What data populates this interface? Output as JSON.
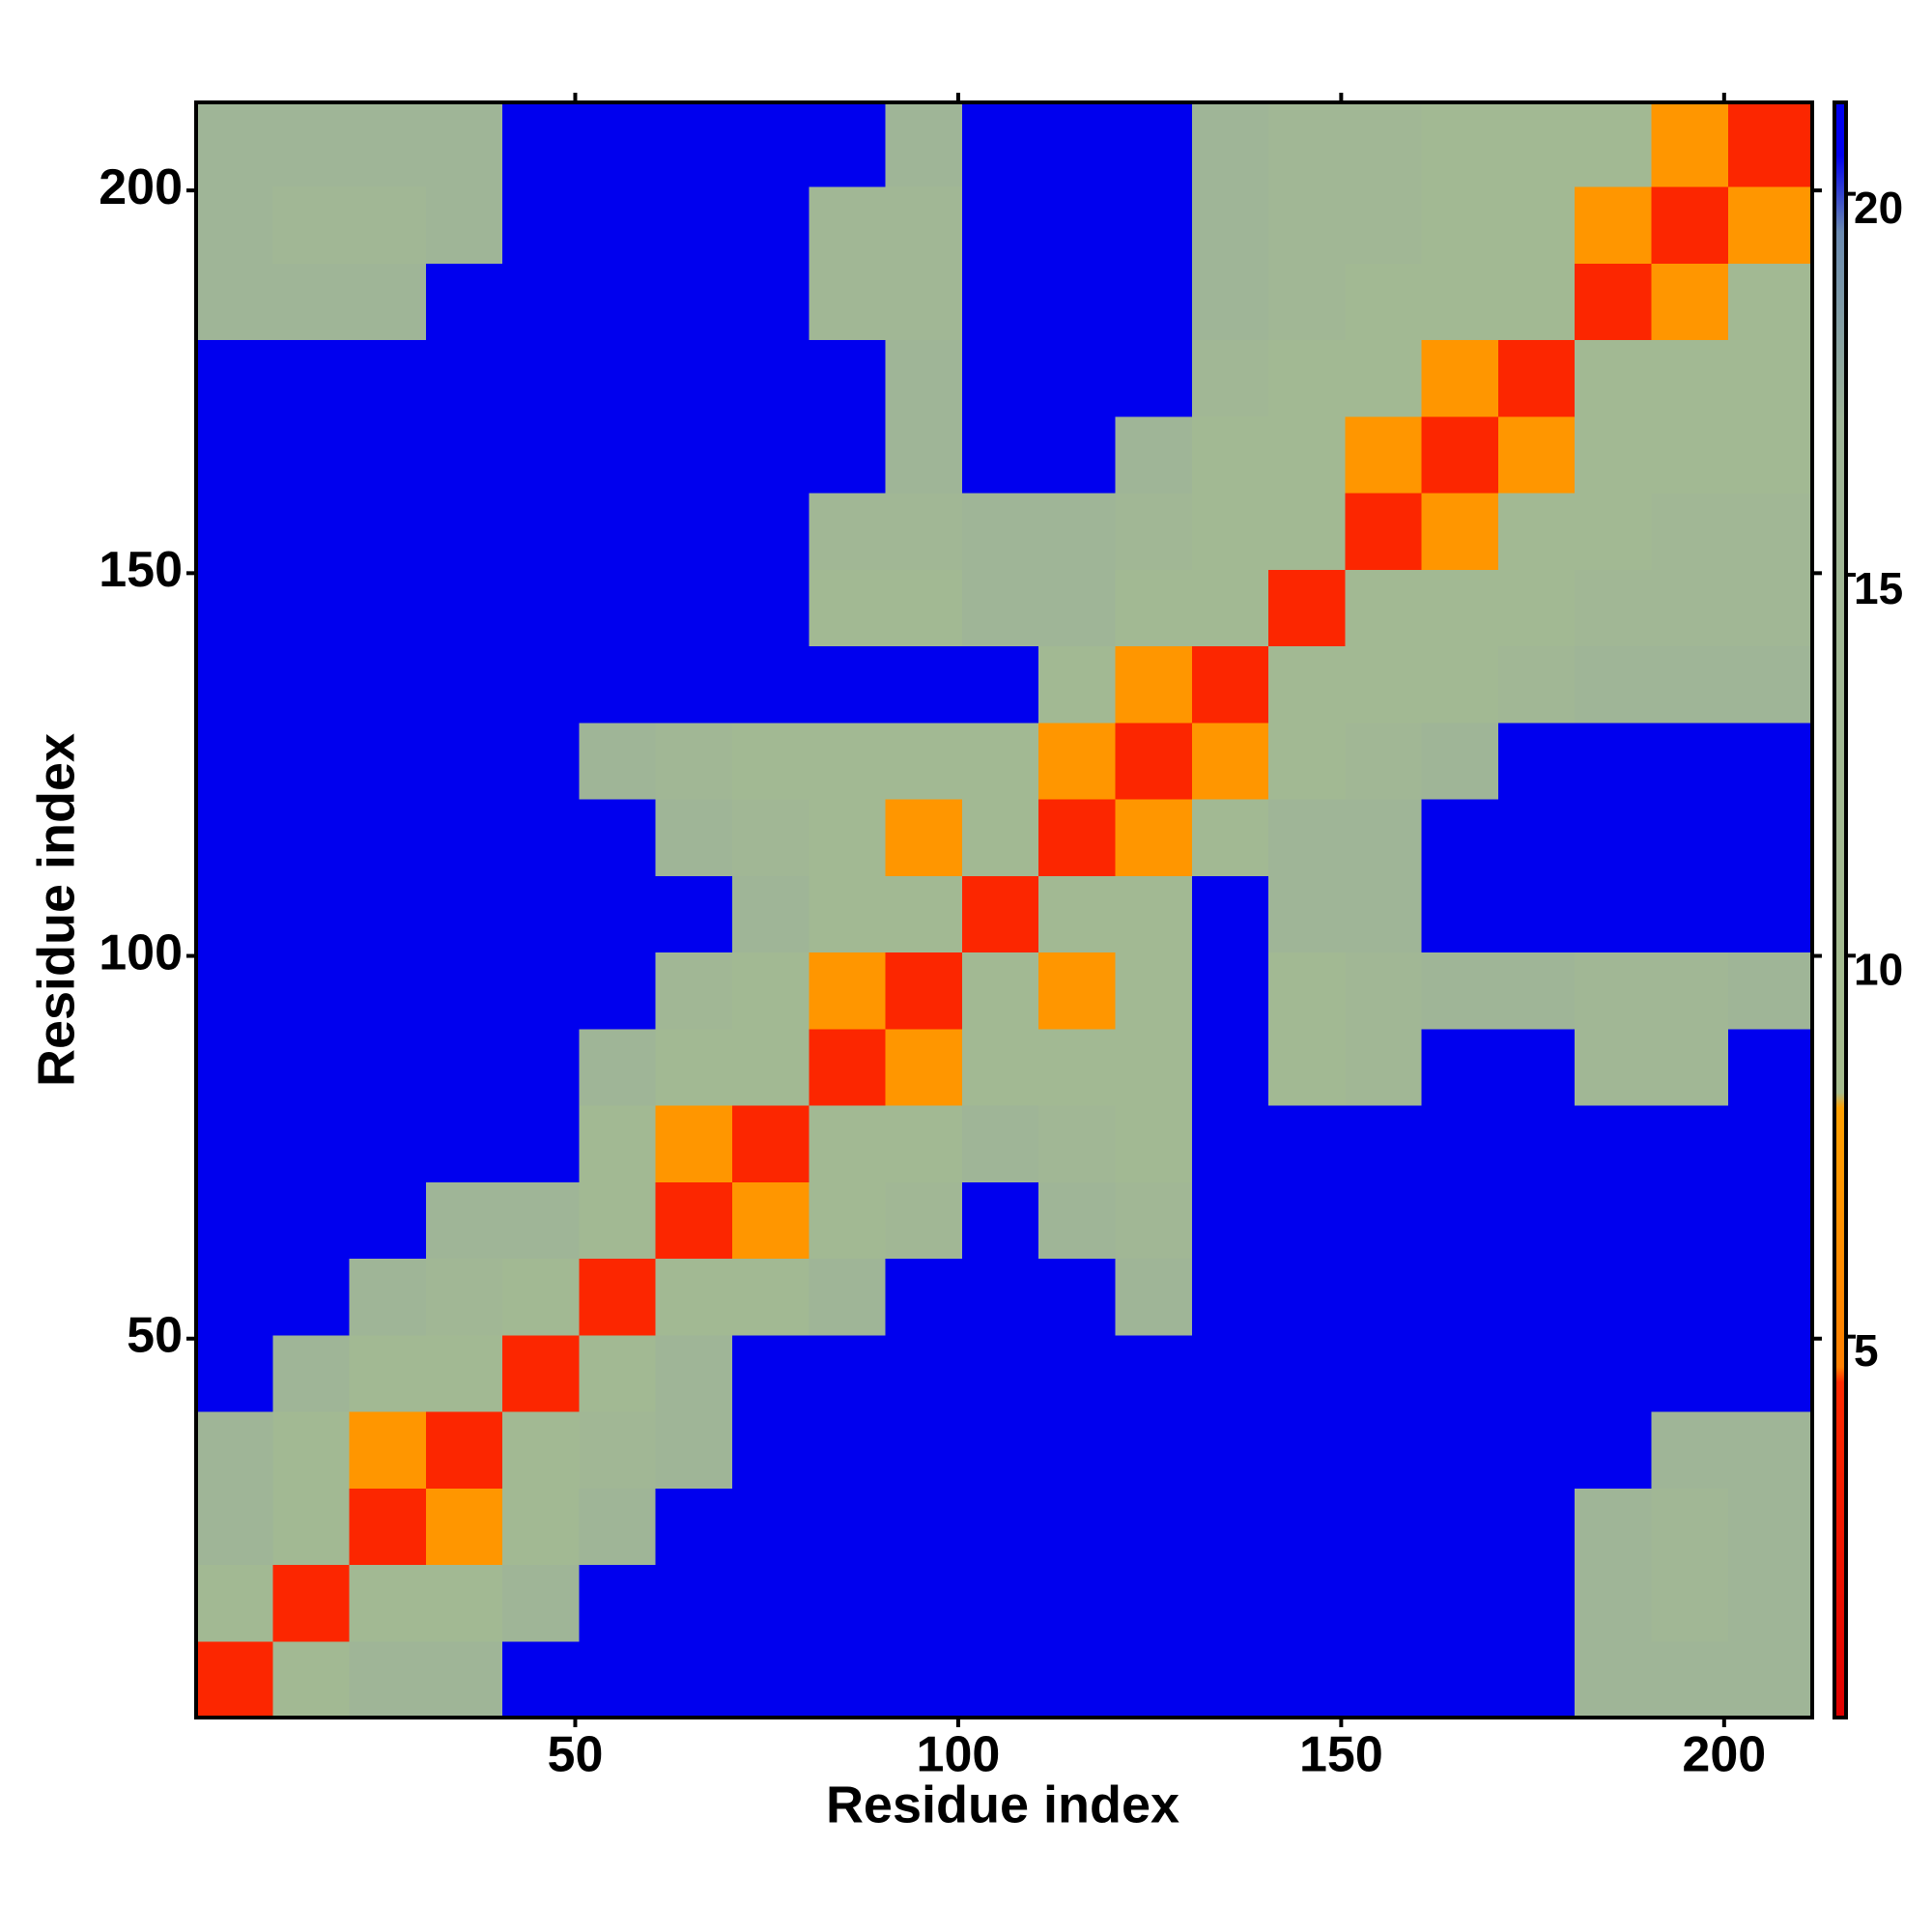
{
  "chart_data": {
    "type": "heatmap",
    "xlabel": "Residue index",
    "ylabel": "Residue index",
    "xlim": [
      0.5,
      211.5
    ],
    "ylim": [
      0.5,
      211.5
    ],
    "xticks": [
      50,
      100,
      150,
      200
    ],
    "yticks": [
      50,
      100,
      150,
      200
    ],
    "xbins": [
      0.5,
      10.5,
      20.5,
      30.5,
      40.5,
      50.5,
      60.5,
      70.5,
      80.5,
      90.5,
      100.5,
      110.5,
      120.5,
      130.5,
      140.5,
      150.5,
      160.5,
      170.5,
      180.5,
      190.5,
      200.5,
      211.5
    ],
    "ybins": [
      0.5,
      10.5,
      20.5,
      30.5,
      40.5,
      50.5,
      60.5,
      70.5,
      80.5,
      90.5,
      100.5,
      110.5,
      120.5,
      130.5,
      140.5,
      150.5,
      160.5,
      170.5,
      180.5,
      190.5,
      200.5,
      211.5
    ],
    "z": [
      [
        4,
        13,
        17,
        17,
        21,
        21,
        21,
        21,
        21,
        21,
        21,
        21,
        21,
        21,
        21,
        21,
        21,
        21,
        17,
        17,
        17
      ],
      [
        13,
        4,
        13,
        13,
        17,
        21,
        21,
        21,
        21,
        21,
        21,
        21,
        21,
        21,
        21,
        21,
        21,
        21,
        17,
        15,
        17
      ],
      [
        17,
        13,
        4,
        7,
        13,
        17,
        21,
        21,
        21,
        21,
        21,
        21,
        21,
        21,
        21,
        21,
        21,
        21,
        17,
        15,
        17
      ],
      [
        17,
        13,
        7,
        4,
        13,
        15,
        17,
        21,
        21,
        21,
        21,
        21,
        21,
        21,
        21,
        21,
        21,
        21,
        21,
        17,
        17
      ],
      [
        21,
        17,
        13,
        13,
        4,
        13,
        17,
        21,
        21,
        21,
        21,
        21,
        21,
        21,
        21,
        21,
        21,
        21,
        21,
        21,
        21
      ],
      [
        21,
        21,
        17,
        15,
        13,
        4,
        13,
        13,
        17,
        21,
        21,
        21,
        17,
        21,
        21,
        21,
        21,
        21,
        21,
        21,
        21
      ],
      [
        21,
        21,
        21,
        17,
        17,
        13,
        4,
        7,
        13,
        15,
        21,
        17,
        15,
        21,
        21,
        21,
        21,
        21,
        21,
        21,
        21
      ],
      [
        21,
        21,
        21,
        21,
        21,
        13,
        7,
        4,
        13,
        13,
        17,
        15,
        13,
        21,
        21,
        21,
        21,
        21,
        21,
        21,
        21
      ],
      [
        21,
        21,
        21,
        21,
        21,
        17,
        13,
        13,
        4,
        7,
        13,
        13,
        13,
        21,
        13,
        15,
        21,
        21,
        15,
        15,
        21
      ],
      [
        21,
        21,
        21,
        21,
        21,
        21,
        15,
        13,
        7,
        4,
        13,
        7,
        13,
        21,
        13,
        15,
        17,
        17,
        15,
        15,
        17
      ],
      [
        21,
        21,
        21,
        21,
        21,
        21,
        21,
        17,
        13,
        13,
        4,
        13,
        13,
        21,
        17,
        17,
        21,
        21,
        21,
        21,
        21
      ],
      [
        21,
        21,
        21,
        21,
        21,
        21,
        17,
        15,
        13,
        7,
        13,
        4,
        7,
        13,
        17,
        17,
        21,
        21,
        21,
        21,
        21
      ],
      [
        21,
        21,
        21,
        21,
        21,
        17,
        15,
        13,
        13,
        13,
        13,
        7,
        4,
        7,
        13,
        15,
        17,
        21,
        21,
        21,
        21
      ],
      [
        21,
        21,
        21,
        21,
        21,
        21,
        21,
        21,
        21,
        21,
        21,
        13,
        7,
        4,
        13,
        13,
        13,
        15,
        17,
        17,
        17
      ],
      [
        21,
        21,
        21,
        21,
        21,
        21,
        21,
        21,
        13,
        13,
        17,
        17,
        13,
        13,
        4,
        13,
        13,
        13,
        15,
        15,
        15
      ],
      [
        21,
        21,
        21,
        21,
        21,
        21,
        21,
        21,
        15,
        15,
        17,
        17,
        15,
        13,
        13,
        4,
        7,
        13,
        13,
        15,
        15
      ],
      [
        21,
        21,
        21,
        21,
        21,
        21,
        21,
        21,
        21,
        17,
        21,
        21,
        17,
        13,
        13,
        7,
        4,
        7,
        13,
        13,
        13
      ],
      [
        21,
        21,
        21,
        21,
        21,
        21,
        21,
        21,
        21,
        17,
        21,
        21,
        21,
        15,
        13,
        13,
        7,
        4,
        13,
        13,
        13
      ],
      [
        17,
        17,
        17,
        21,
        21,
        21,
        21,
        21,
        15,
        15,
        21,
        21,
        21,
        17,
        15,
        13,
        13,
        13,
        4,
        7,
        13
      ],
      [
        17,
        15,
        15,
        17,
        21,
        21,
        21,
        21,
        15,
        15,
        21,
        21,
        21,
        17,
        15,
        15,
        13,
        13,
        7,
        4,
        7
      ],
      [
        17,
        17,
        17,
        17,
        21,
        21,
        21,
        21,
        21,
        17,
        21,
        21,
        21,
        17,
        15,
        15,
        13,
        13,
        13,
        7,
        4
      ]
    ],
    "colorscale": [
      {
        "value": 0,
        "color": "#e00000"
      },
      {
        "value": 4.4,
        "color": "#ff2a00"
      },
      {
        "value": 4.6,
        "color": "#ff7f00"
      },
      {
        "value": 8,
        "color": "#ffa000"
      },
      {
        "value": 8.2,
        "color": "#a6bd8e"
      },
      {
        "value": 17,
        "color": "#9fb597"
      },
      {
        "value": 19.5,
        "color": "#6a8ab0"
      },
      {
        "value": 20.5,
        "color": "#0000ee"
      },
      {
        "value": 21.2,
        "color": "#0000ee"
      }
    ],
    "colorbar": {
      "ylim": [
        0,
        21.2
      ],
      "yticks": [
        5,
        10,
        15,
        20
      ]
    }
  }
}
